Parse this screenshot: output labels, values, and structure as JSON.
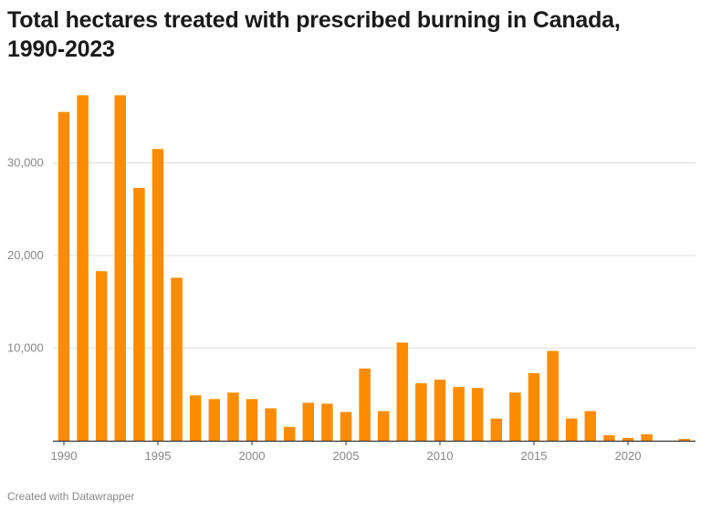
{
  "title": "Total hectares treated with prescribed burning in Canada, 1990-2023",
  "footer": "Created with Datawrapper",
  "colors": {
    "bar": "#ff8c00",
    "grid": "#dddddd",
    "axis": "#333333",
    "tick_label": "#888888"
  },
  "chart_data": {
    "type": "bar",
    "title": "Total hectares treated with prescribed burning in Canada, 1990-2023",
    "xlabel": "",
    "ylabel": "",
    "categories": [
      1990,
      1991,
      1992,
      1993,
      1994,
      1995,
      1996,
      1997,
      1998,
      1999,
      2000,
      2001,
      2002,
      2003,
      2004,
      2005,
      2006,
      2007,
      2008,
      2009,
      2010,
      2011,
      2012,
      2013,
      2014,
      2015,
      2016,
      2017,
      2018,
      2019,
      2020,
      2021,
      2022,
      2023
    ],
    "values": [
      35500,
      37300,
      18300,
      37300,
      27300,
      31500,
      17600,
      4900,
      4500,
      5200,
      4500,
      3500,
      1500,
      4100,
      4000,
      3100,
      7800,
      3200,
      10600,
      6200,
      6600,
      5800,
      5700,
      2400,
      5200,
      7300,
      9700,
      2400,
      3200,
      600,
      300,
      700,
      0,
      200
    ],
    "ylim": [
      0,
      37500
    ],
    "yticks": [
      10000,
      20000,
      30000
    ],
    "ytick_labels": [
      "10,000",
      "20,000",
      "30,000"
    ],
    "xticks": [
      1990,
      1995,
      2000,
      2005,
      2010,
      2015,
      2020
    ],
    "grid": true,
    "legend": "none"
  }
}
